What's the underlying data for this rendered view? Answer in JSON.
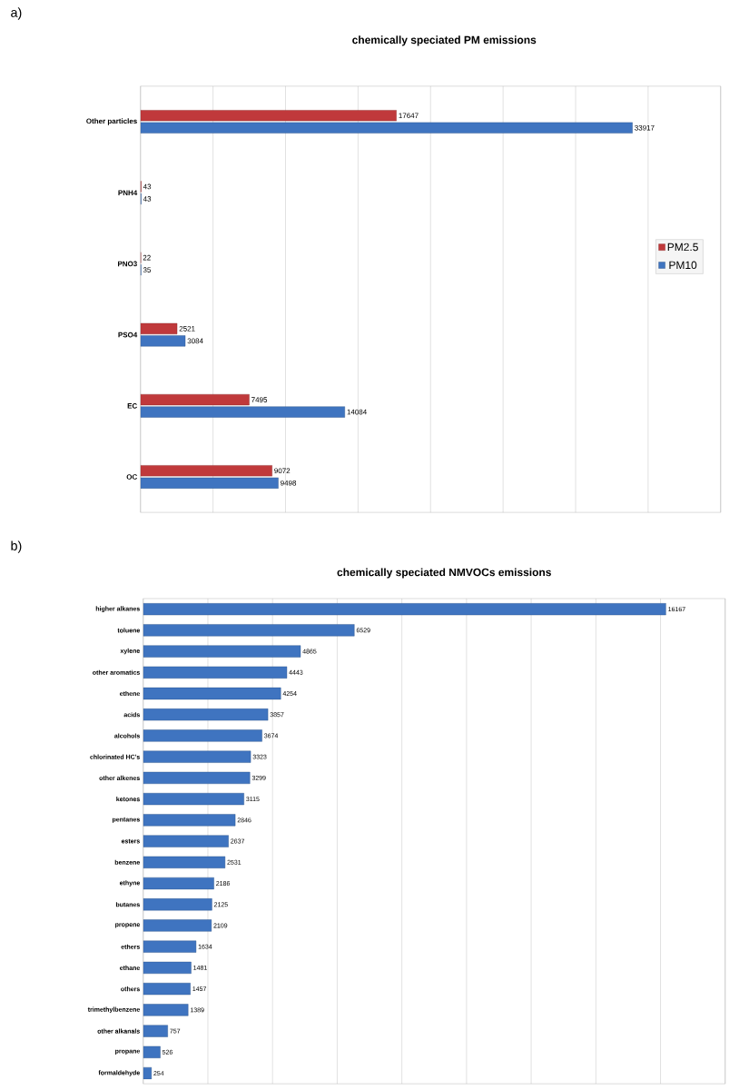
{
  "chart_data": [
    {
      "type": "bar",
      "orientation": "horizontal",
      "title": "chemically speciated PM emissions",
      "annotations": [
        "a)"
      ],
      "categories": [
        "Other particles",
        "PNH4",
        "PNO3",
        "PSO4",
        "EC",
        "OC"
      ],
      "series": [
        {
          "name": "PM2.5",
          "color": "#c0393b",
          "values": [
            17647,
            43,
            22,
            2521,
            7495,
            9072
          ]
        },
        {
          "name": "PM10",
          "color": "#3f74c0",
          "values": [
            33917,
            43,
            35,
            3084,
            14084,
            9498
          ]
        }
      ],
      "xlim": [
        0,
        40000
      ],
      "xticks": [
        {
          "value": 0,
          "label": null
        },
        {
          "value": 5000,
          "label": null
        },
        {
          "value": 10000,
          "label": null
        },
        {
          "value": 15000,
          "label": null
        },
        {
          "value": 20000,
          "label": null
        },
        {
          "value": 25000,
          "label": null
        },
        {
          "value": 30000,
          "label": null
        },
        {
          "value": 35000,
          "label": null
        },
        {
          "value": 40000,
          "label": null
        }
      ],
      "tick_labels": "y",
      "grid": "x",
      "legend": "right",
      "data_labels": true
    },
    {
      "type": "bar",
      "orientation": "horizontal",
      "title": "chemically speciated NMVOCs emissions",
      "annotations": [
        "b)"
      ],
      "categories": [
        "higher alkanes",
        "toluene",
        "xylene",
        "other aromatics",
        "ethene",
        "acids",
        "alcohols",
        "chlorinated HC's",
        "other alkenes",
        "ketones",
        "pentanes",
        "esters",
        "benzene",
        "ethyne",
        "butanes",
        "propene",
        "ethers",
        "ethane",
        "others",
        "trimethylbenzene",
        "other alkanals",
        "propane",
        "formaldehyde"
      ],
      "series": [
        {
          "color": "#3f74c0",
          "values": [
            16167,
            6529,
            4865,
            4443,
            4254,
            3857,
            3674,
            3323,
            3299,
            3115,
            2846,
            2637,
            2531,
            2186,
            2125,
            2109,
            1634,
            1481,
            1457,
            1389,
            757,
            526,
            254
          ]
        }
      ],
      "xlim": [
        0,
        18000
      ],
      "xticks": [
        {
          "value": 0,
          "label": null
        },
        {
          "value": 2000,
          "label": null
        },
        {
          "value": 4000,
          "label": null
        },
        {
          "value": 6000,
          "label": null
        },
        {
          "value": 8000,
          "label": null
        },
        {
          "value": 10000,
          "label": null
        },
        {
          "value": 12000,
          "label": null
        },
        {
          "value": 14000,
          "label": null
        },
        {
          "value": 16000,
          "label": null
        },
        {
          "value": 18000,
          "label": null
        }
      ],
      "tick_labels": "y",
      "grid": "x",
      "data_labels": true
    }
  ]
}
